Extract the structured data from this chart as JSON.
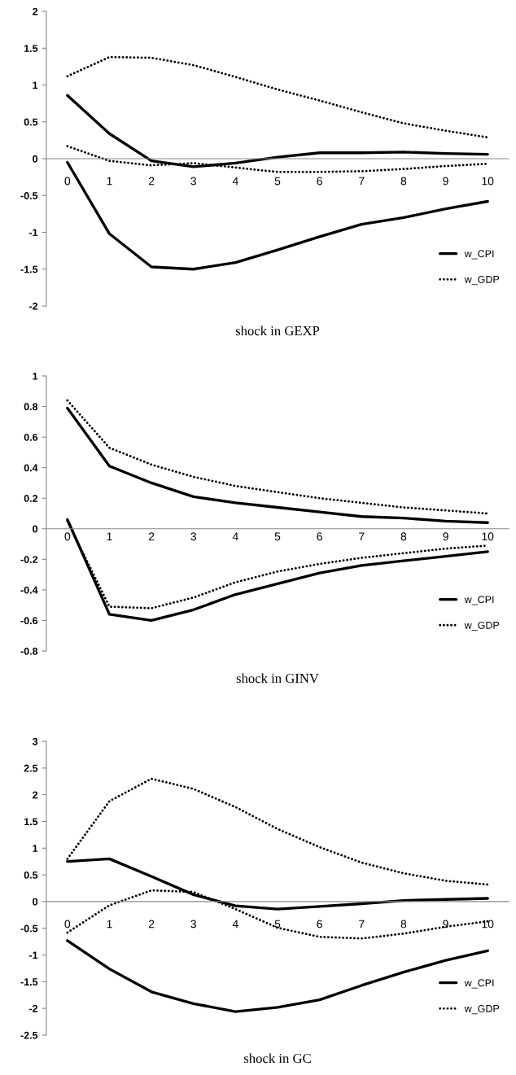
{
  "chart_data": [
    {
      "type": "line",
      "title": "shock in GEXP",
      "categories": [
        "0",
        "1",
        "2",
        "3",
        "4",
        "5",
        "6",
        "7",
        "8",
        "9",
        "10"
      ],
      "ylim": [
        -2,
        2
      ],
      "yticks": [
        -2,
        -1.5,
        -1,
        -0.5,
        0,
        0.5,
        1,
        1.5,
        2
      ],
      "grid": false,
      "legend": "bottom right",
      "series": [
        {
          "name": "w_CPI",
          "color": "#000000",
          "line_style": "solid",
          "values": [
            0.86,
            0.34,
            -0.03,
            -0.11,
            -0.06,
            0.02,
            0.08,
            0.08,
            0.09,
            0.07,
            0.06
          ]
        },
        {
          "color": "#000000",
          "line_style": "solid",
          "values": [
            -0.05,
            -1.02,
            -1.47,
            -1.5,
            -1.41,
            -1.24,
            -1.06,
            -0.89,
            -0.8,
            -0.68,
            -0.58
          ]
        },
        {
          "name": "w_GDP",
          "color": "#000000",
          "line_style": "dotted",
          "values": [
            1.12,
            1.38,
            1.37,
            1.27,
            1.11,
            0.94,
            0.79,
            0.63,
            0.48,
            0.38,
            0.29
          ]
        },
        {
          "color": "#000000",
          "line_style": "dotted",
          "values": [
            0.17,
            -0.03,
            -0.09,
            -0.06,
            -0.12,
            -0.18,
            -0.18,
            -0.17,
            -0.14,
            -0.1,
            -0.07
          ]
        }
      ]
    },
    {
      "type": "line",
      "title": "shock in GINV",
      "categories": [
        "0",
        "1",
        "2",
        "3",
        "4",
        "5",
        "6",
        "7",
        "8",
        "9",
        "10"
      ],
      "ylim": [
        -0.8,
        1
      ],
      "yticks": [
        -0.8,
        -0.6,
        -0.4,
        -0.2,
        0,
        0.2,
        0.4,
        0.6,
        0.8,
        1
      ],
      "grid": false,
      "legend": "bottom right",
      "series": [
        {
          "name": "w_CPI",
          "color": "#000000",
          "line_style": "solid",
          "values": [
            0.79,
            0.41,
            0.3,
            0.21,
            0.17,
            0.14,
            0.11,
            0.08,
            0.07,
            0.05,
            0.04
          ]
        },
        {
          "color": "#000000",
          "line_style": "solid",
          "values": [
            0.06,
            -0.56,
            -0.6,
            -0.53,
            -0.43,
            -0.36,
            -0.29,
            -0.24,
            -0.21,
            -0.18,
            -0.15
          ]
        },
        {
          "name": "w_GDP",
          "color": "#000000",
          "line_style": "dotted",
          "values": [
            0.84,
            0.53,
            0.42,
            0.34,
            0.28,
            0.24,
            0.2,
            0.17,
            0.14,
            0.12,
            0.1
          ]
        },
        {
          "color": "#000000",
          "line_style": "dotted",
          "values": [
            0.05,
            -0.51,
            -0.52,
            -0.45,
            -0.35,
            -0.28,
            -0.23,
            -0.19,
            -0.16,
            -0.13,
            -0.11
          ]
        }
      ]
    },
    {
      "type": "line",
      "title": "shock in GC",
      "categories": [
        "0",
        "1",
        "2",
        "3",
        "4",
        "5",
        "6",
        "7",
        "8",
        "9",
        "10"
      ],
      "ylim": [
        -2.5,
        3
      ],
      "yticks": [
        -2.5,
        -2,
        -1.5,
        -1,
        -0.5,
        0,
        0.5,
        1,
        1.5,
        2,
        2.5,
        3
      ],
      "grid": false,
      "legend": "bottom right",
      "series": [
        {
          "name": "w_CPI",
          "color": "#000000",
          "line_style": "solid",
          "values": [
            0.75,
            0.8,
            0.47,
            0.13,
            -0.08,
            -0.14,
            -0.09,
            -0.04,
            0.02,
            0.04,
            0.06
          ]
        },
        {
          "color": "#000000",
          "line_style": "solid",
          "values": [
            -0.73,
            -1.26,
            -1.69,
            -1.91,
            -2.06,
            -1.98,
            -1.84,
            -1.57,
            -1.32,
            -1.1,
            -0.92
          ]
        },
        {
          "name": "w_GDP",
          "color": "#000000",
          "line_style": "dotted",
          "values": [
            0.8,
            1.88,
            2.3,
            2.11,
            1.77,
            1.36,
            1.02,
            0.73,
            0.53,
            0.39,
            0.32
          ]
        },
        {
          "color": "#000000",
          "line_style": "dotted",
          "values": [
            -0.58,
            -0.07,
            0.21,
            0.18,
            -0.14,
            -0.49,
            -0.66,
            -0.69,
            -0.6,
            -0.47,
            -0.37
          ]
        }
      ]
    }
  ]
}
